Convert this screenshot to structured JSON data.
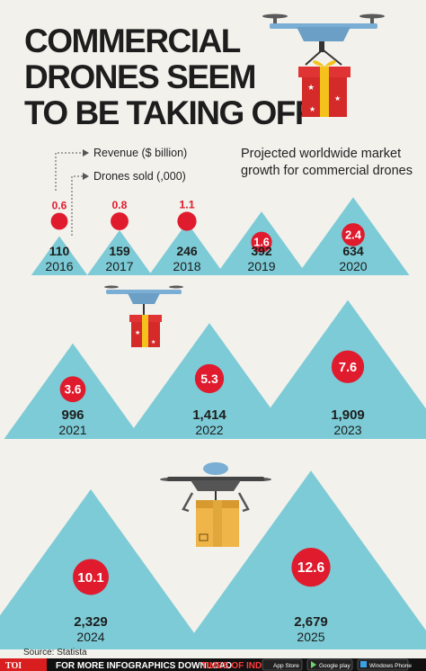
{
  "title_lines": [
    "COMMERCIAL",
    "DRONES SEEM",
    "TO BE TAKING OFF"
  ],
  "legend": {
    "revenue_label": "Revenue ($ billion)",
    "drones_label": "Drones  sold (,000)"
  },
  "subtitle_lines": [
    "Projected worldwide market",
    "growth for commercial drones"
  ],
  "chart_data": {
    "type": "bar",
    "title": "COMMERCIAL DRONES SEEM TO BE TAKING OFF",
    "subtitle": "Projected worldwide market growth for commercial drones",
    "categories": [
      "2016",
      "2017",
      "2018",
      "2019",
      "2020",
      "2021",
      "2022",
      "2023",
      "2024",
      "2025"
    ],
    "series": [
      {
        "name": "Revenue ($ billion)",
        "values": [
          0.6,
          0.8,
          1.1,
          1.6,
          2.4,
          3.6,
          5.3,
          7.6,
          10.1,
          12.6
        ]
      },
      {
        "name": "Drones  sold (,000)",
        "values": [
          110,
          159,
          246,
          392,
          634,
          996,
          1414,
          1909,
          2329,
          2679
        ]
      }
    ],
    "revenue_labels": [
      "0.6",
      "0.8",
      "1.1",
      "1.6",
      "2.4",
      "3.6",
      "5.3",
      "7.6",
      "10.1",
      "12.6"
    ],
    "drones_labels": [
      "110",
      "159",
      "246",
      "392",
      "634",
      "996",
      "1,414",
      "1,909",
      "2,329",
      "2,679"
    ]
  },
  "source": "Source: Statista",
  "footer": {
    "logo": "TOI",
    "text": "FOR MORE  INFOGRAPHICS DOWNLOAD",
    "app_name": "TIMES OF INDIA  APP",
    "stores": [
      "App Store",
      "Google play",
      "Windows Phone"
    ]
  },
  "colors": {
    "background": "#f2f1ec",
    "triangle": "#7ccbd6",
    "revenue_circle": "#e01b2e",
    "footer_bg": "#111111",
    "drone_body": "#7aaed4",
    "gift_red": "#d42a2a",
    "gift_ribbon": "#f4c21a",
    "box": "#f0b549"
  }
}
